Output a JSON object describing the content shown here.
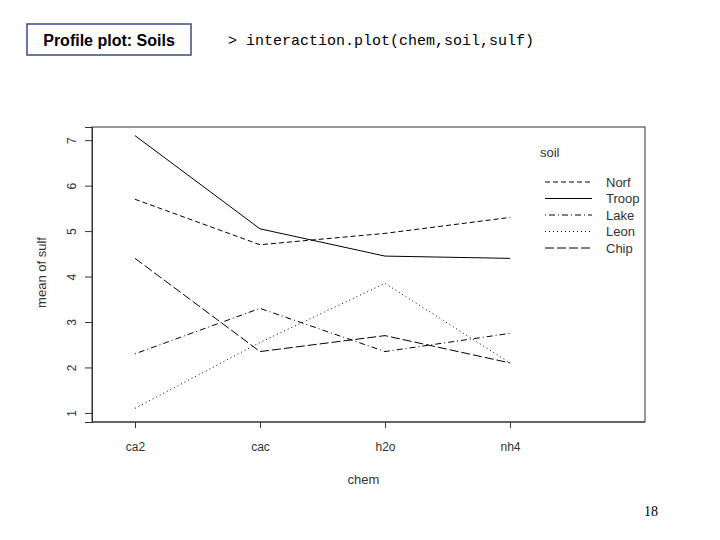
{
  "chart_data": {
    "type": "line",
    "title": "Profile plot: Soils",
    "annotations": [
      "> interaction.plot(chem,soil,sulf)"
    ],
    "page_number": "18",
    "x_label": "chem",
    "y_label": "mean of sulf",
    "legend_title": "soil",
    "legend": "right",
    "grid": false,
    "categories": [
      "ca2",
      "cac",
      "h2o",
      "nh4"
    ],
    "ylim": [
      0.8,
      7.29
    ],
    "yticks": [
      1,
      2,
      3,
      4,
      5,
      6,
      7
    ],
    "series": [
      {
        "name": "Norf",
        "color": "#000000",
        "line_style": "dashed",
        "values": [
          5.7,
          4.7,
          4.95,
          5.3
        ]
      },
      {
        "name": "Troop",
        "color": "#000000",
        "line_style": "solid",
        "values": [
          7.1,
          5.05,
          4.45,
          4.4
        ]
      },
      {
        "name": "Lake",
        "color": "#000000",
        "line_style": "dotdash",
        "values": [
          2.3,
          3.3,
          2.35,
          2.75
        ]
      },
      {
        "name": "Leon",
        "color": "#000000",
        "line_style": "dotted",
        "values": [
          1.1,
          2.55,
          3.85,
          2.1
        ]
      },
      {
        "name": "Chip",
        "color": "#000000",
        "line_style": "longdash",
        "values": [
          4.4,
          2.35,
          2.7,
          2.1
        ]
      }
    ]
  }
}
